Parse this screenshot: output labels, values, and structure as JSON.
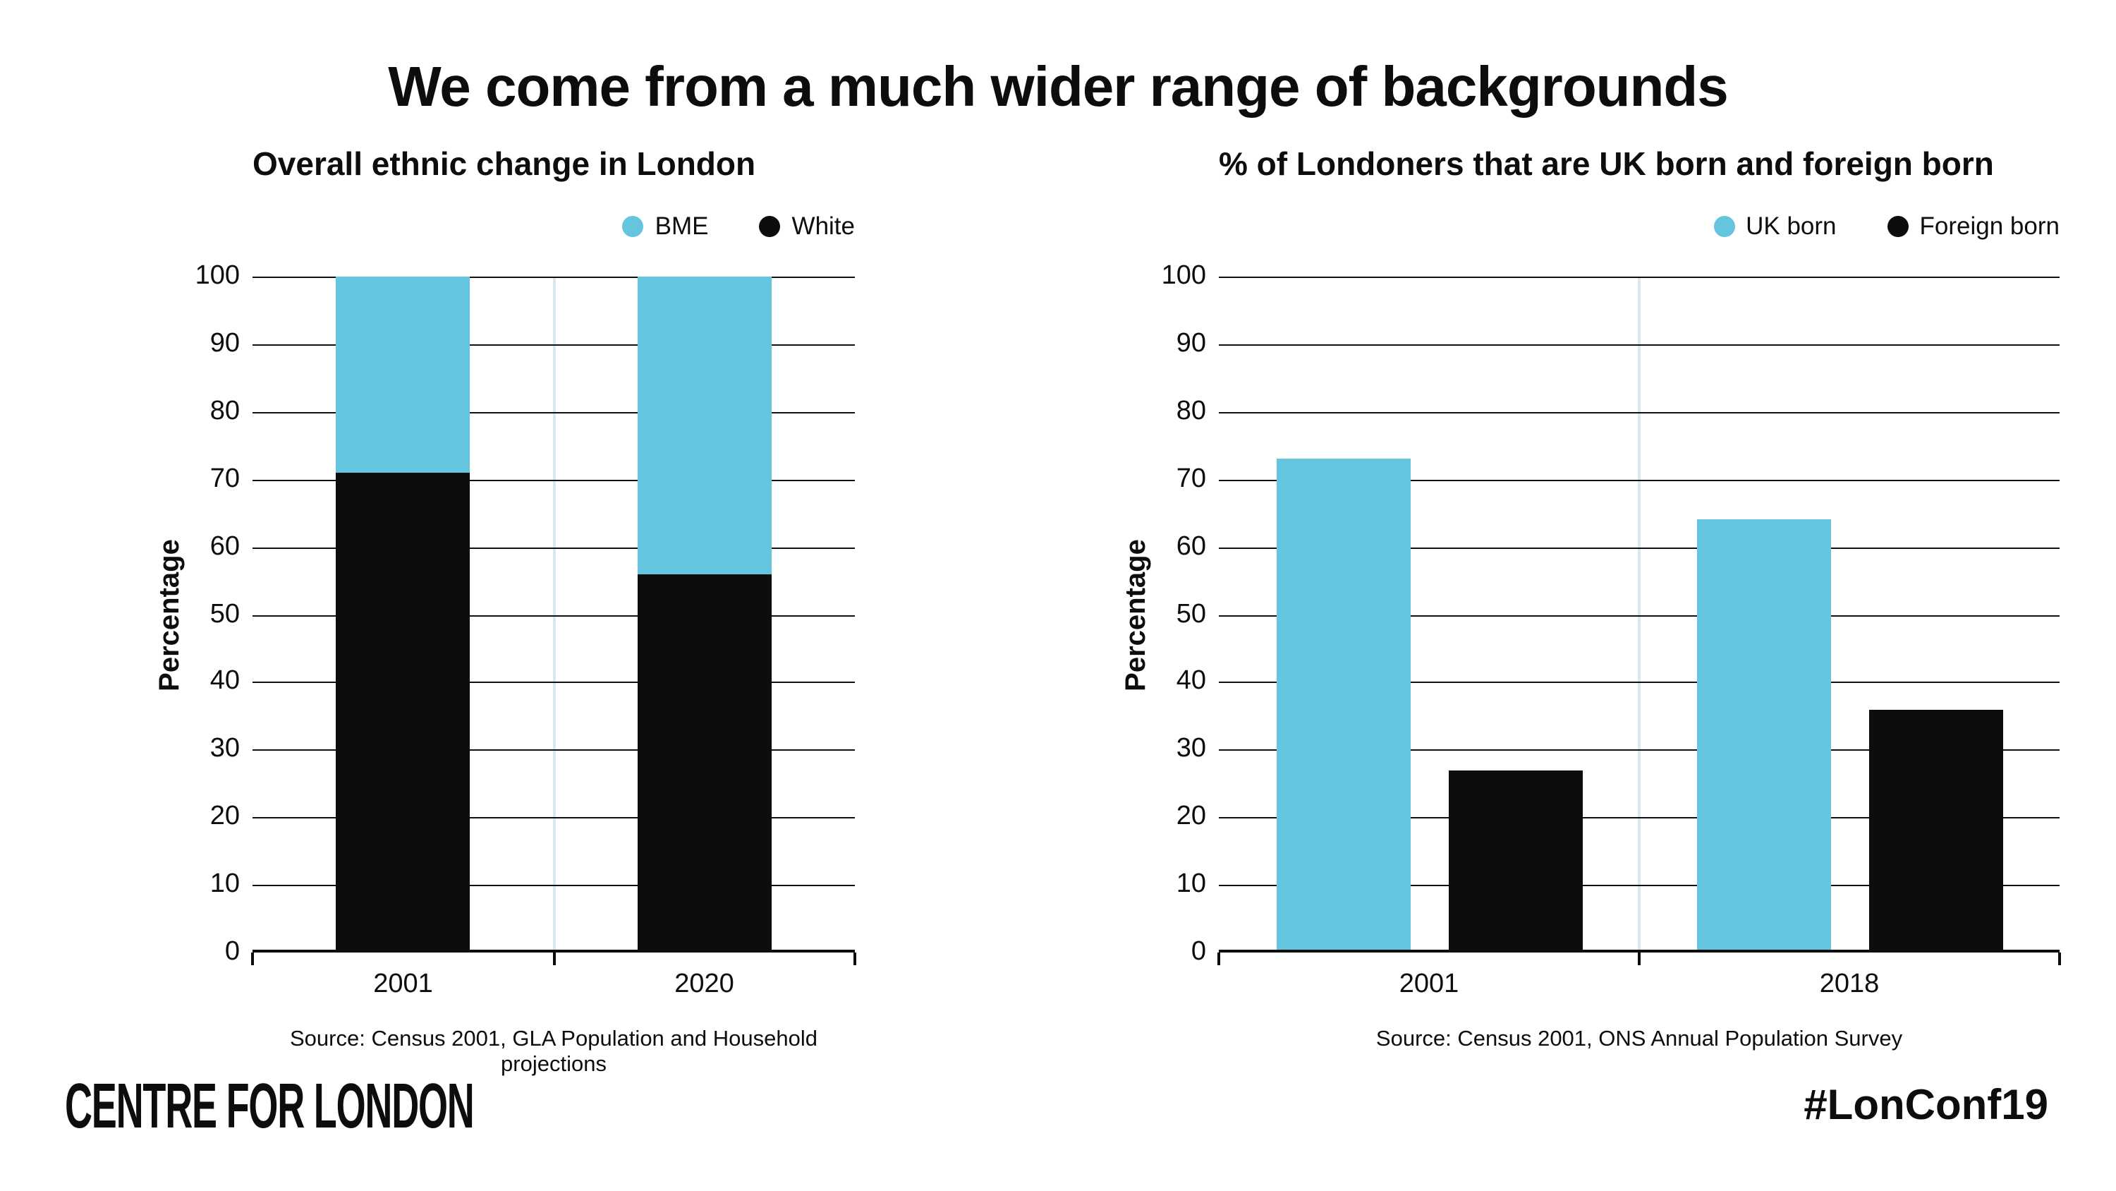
{
  "main_title": "We come from a much wider range of backgrounds",
  "colors": {
    "accent_blue": "#66c5de",
    "bar_black": "#0d0d0d",
    "grid_black": "#111111",
    "divider_light_blue": "#d7e7ec"
  },
  "chart_data": [
    {
      "type": "bar",
      "variant": "stacked",
      "title": "Overall ethnic change in London",
      "categories": [
        "2001",
        "2020"
      ],
      "series": [
        {
          "name": "BME",
          "color_key": "accent_blue",
          "values": [
            29,
            44
          ]
        },
        {
          "name": "White",
          "color_key": "bar_black",
          "values": [
            71,
            56
          ]
        }
      ],
      "stack_order_bottom_to_top": [
        "White",
        "BME"
      ],
      "ylabel": "Percentage",
      "ylim": [
        0,
        100
      ],
      "yticks": [
        0,
        10,
        20,
        30,
        40,
        50,
        60,
        70,
        80,
        90,
        100
      ],
      "grid": "horizontal",
      "legend_position": "top-right",
      "source": "Source: Census 2001, GLA Population and Household projections"
    },
    {
      "type": "bar",
      "variant": "grouped",
      "title": "% of Londoners that are UK born and foreign born",
      "categories": [
        "2001",
        "2018"
      ],
      "series": [
        {
          "name": "UK born",
          "color_key": "accent_blue",
          "values": [
            73,
            64
          ]
        },
        {
          "name": "Foreign born",
          "color_key": "bar_black",
          "values": [
            27,
            36
          ]
        }
      ],
      "ylabel": "Percentage",
      "ylim": [
        0,
        100
      ],
      "yticks": [
        0,
        10,
        20,
        30,
        40,
        50,
        60,
        70,
        80,
        90,
        100
      ],
      "grid": "horizontal",
      "legend_position": "top-right",
      "source": "Source: Census 2001, ONS Annual Population Survey"
    }
  ],
  "footer": {
    "logo_text": "CENTRE FOR LONDON",
    "hashtag": "#LonConf19"
  }
}
